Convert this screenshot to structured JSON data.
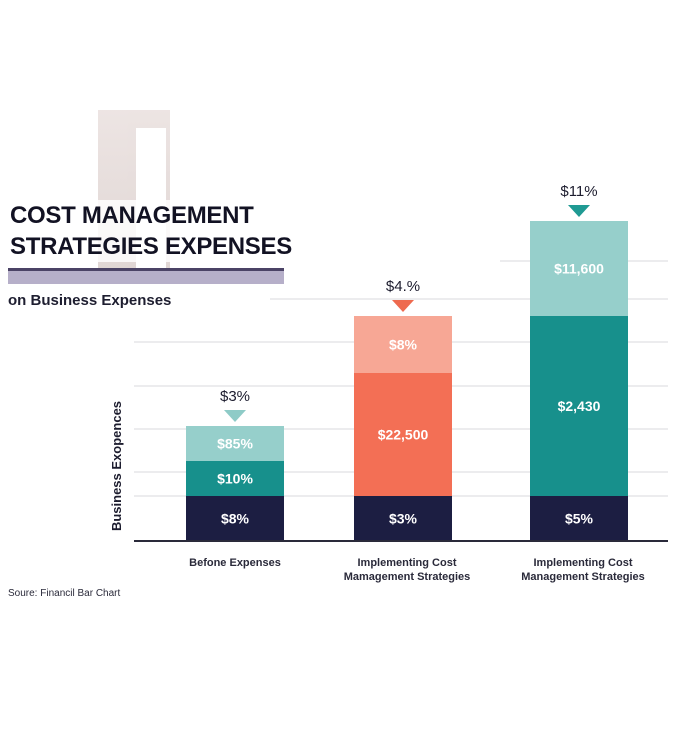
{
  "title_lines": [
    "COST MANAGEMENT",
    "STRATEGIES EXPENSES"
  ],
  "subtitle": "on Business Expenses",
  "source": "Soure: Financil Bar Chart",
  "colors": {
    "navy": "#1c1e42",
    "teal": "#17908c",
    "light_teal": "#96cfcb",
    "coral": "#f36f55",
    "peach": "#f7a795",
    "arrow_teal": "#1f9a93",
    "arrow_coral": "#ee6a4f",
    "arrow_light_teal": "#8ecbc7"
  },
  "chart_data": {
    "type": "bar",
    "stacked": true,
    "ylabel": "Business Exopences",
    "grid": true,
    "categories": [
      [
        "Befone Expenses"
      ],
      [
        "Implementing Cost",
        "Mamagement Strategies"
      ],
      [
        "Implementing Cost",
        "Management Strategies"
      ]
    ],
    "bars": [
      {
        "top_label": "$3%",
        "arrow_color": "#8ecbc7",
        "segments": [
          {
            "label": "$8%",
            "value": 45,
            "color": "#1c1e42"
          },
          {
            "label": "$10%",
            "value": 35,
            "color": "#17908c"
          },
          {
            "label": "$85%",
            "value": 35,
            "color": "#96cfcb"
          }
        ]
      },
      {
        "top_label": "$4.%",
        "arrow_color": "#ee6a4f",
        "segments": [
          {
            "label": "$3%",
            "value": 45,
            "color": "#1c1e42"
          },
          {
            "label": "$22,500",
            "value": 123,
            "color": "#f36f55"
          },
          {
            "label": "$8%",
            "value": 57,
            "color": "#f7a795"
          }
        ]
      },
      {
        "top_label": "$11%",
        "arrow_color": "#1f9a93",
        "segments": [
          {
            "label": "$5%",
            "value": 45,
            "color": "#1c1e42"
          },
          {
            "label": "$2,430",
            "value": 180,
            "color": "#17908c"
          },
          {
            "label": "$11,600",
            "value": 95,
            "color": "#96cfcb"
          }
        ]
      }
    ]
  }
}
